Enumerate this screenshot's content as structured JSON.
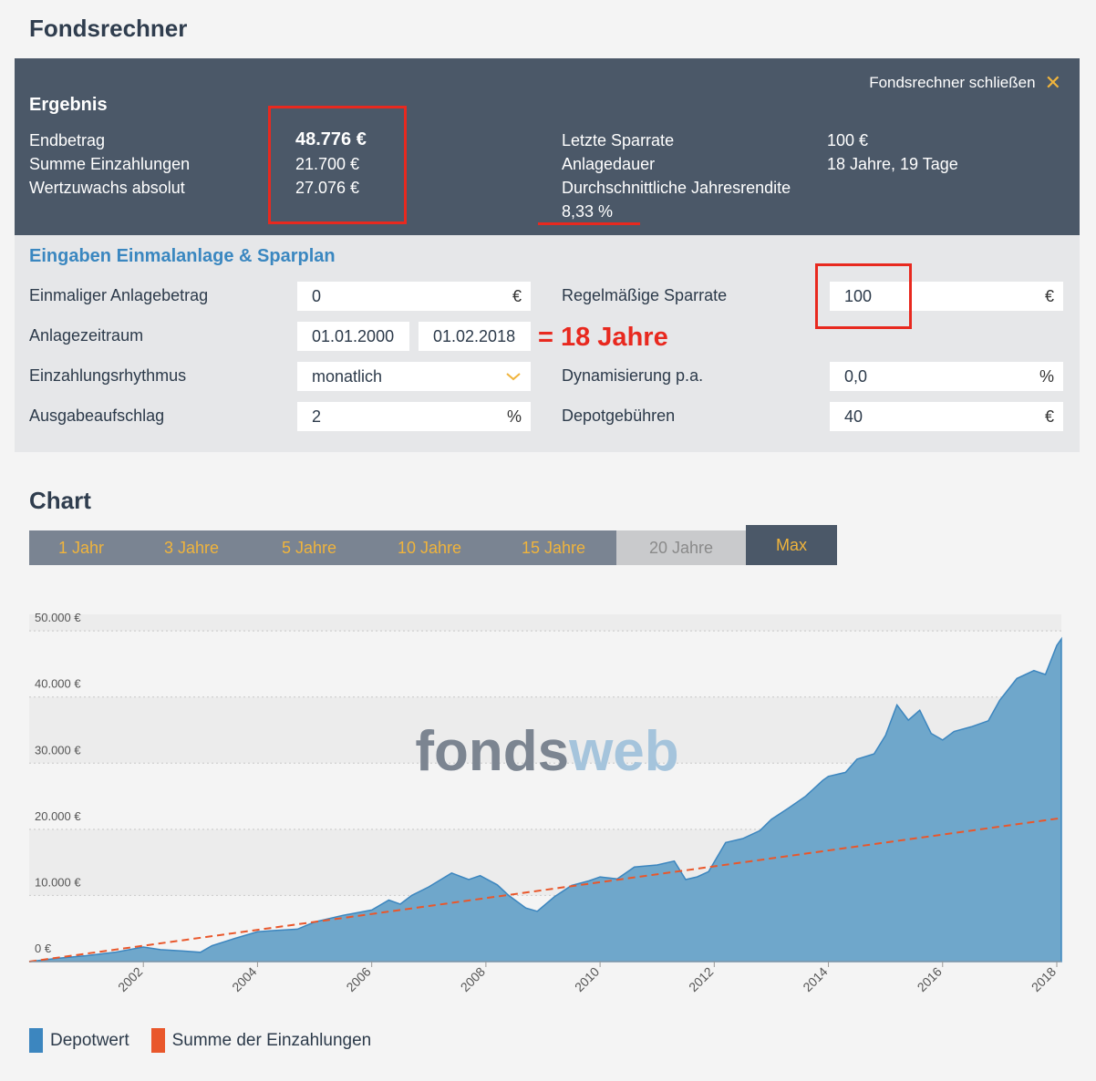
{
  "title": "Fondsrechner",
  "close_label": "Fondsrechner schließen",
  "result": {
    "heading": "Ergebnis",
    "left": [
      {
        "label": "Endbetrag",
        "value": "48.776 €"
      },
      {
        "label": "Summe Einzahlungen",
        "value": "21.700 €"
      },
      {
        "label": "Wertzuwachs absolut",
        "value": "27.076 €"
      }
    ],
    "right": [
      {
        "label": "Letzte Sparrate",
        "value": "100 €"
      },
      {
        "label": "Anlagedauer",
        "value": "18 Jahre, 19 Tage"
      },
      {
        "label": "Durchschnittliche Jahresrendite",
        "value": ""
      }
    ],
    "rendite_value": "8,33 %"
  },
  "inputs": {
    "heading": "Eingaben Einmalanlage & Sparplan",
    "einmal_label": "Einmaliger Anlagebetrag",
    "einmal_value": "0",
    "einmal_unit": "€",
    "zeitraum_label": "Anlagezeitraum",
    "start_date": "01.01.2000",
    "end_date": "01.02.2018",
    "rhythmus_label": "Einzahlungsrhythmus",
    "rhythmus_value": "monatlich",
    "aufschlag_label": "Ausgabeaufschlag",
    "aufschlag_value": "2",
    "aufschlag_unit": "%",
    "sparrate_label": "Regelmäßige Sparrate",
    "sparrate_value": "100",
    "sparrate_unit": "€",
    "dyn_label": "Dynamisierung p.a.",
    "dyn_value": "0,0",
    "dyn_unit": "%",
    "gebuehr_label": "Depotgebühren",
    "gebuehr_value": "40",
    "gebuehr_unit": "€"
  },
  "annotation": "= 18 Jahre",
  "chart_title": "Chart",
  "tabs": [
    {
      "label": "1 Jahr",
      "state": "normal"
    },
    {
      "label": "3 Jahre",
      "state": "normal"
    },
    {
      "label": "5 Jahre",
      "state": "normal"
    },
    {
      "label": "10 Jahre",
      "state": "normal"
    },
    {
      "label": "15 Jahre",
      "state": "normal"
    },
    {
      "label": "20 Jahre",
      "state": "disabled"
    },
    {
      "label": "Max",
      "state": "active"
    }
  ],
  "watermark": {
    "part1": "fonds",
    "part2": "web"
  },
  "colors": {
    "depot": "#6fa7cb",
    "depot_line": "#3c86bf",
    "einzahlung": "#e9572b",
    "accent": "#f0b43c",
    "highlight": "#e8291f"
  },
  "chart_data": {
    "type": "area",
    "y_tick_labels": [
      "0 €",
      "10.000 €",
      "20.000 €",
      "30.000 €",
      "40.000 €",
      "50.000 €"
    ],
    "ylim": [
      0,
      50000
    ],
    "x_tick_labels": [
      "2002",
      "2004",
      "2006",
      "2008",
      "2010",
      "2012",
      "2014",
      "2016",
      "2018"
    ],
    "xlim": [
      2000.0,
      2018.08
    ],
    "series": [
      {
        "name": "Depotwert",
        "type": "area",
        "x": [
          2000.0,
          2000.5,
          2001.0,
          2001.5,
          2002.0,
          2002.3,
          2002.7,
          2003.0,
          2003.2,
          2003.6,
          2004.0,
          2004.3,
          2004.7,
          2005.0,
          2005.5,
          2006.0,
          2006.3,
          2006.5,
          2006.7,
          2007.0,
          2007.4,
          2007.7,
          2007.9,
          2008.2,
          2008.4,
          2008.7,
          2008.9,
          2009.2,
          2009.5,
          2009.8,
          2010.0,
          2010.3,
          2010.6,
          2011.0,
          2011.3,
          2011.5,
          2011.7,
          2011.9,
          2012.2,
          2012.5,
          2012.8,
          2013.0,
          2013.3,
          2013.6,
          2013.9,
          2014.0,
          2014.3,
          2014.5,
          2014.8,
          2015.0,
          2015.2,
          2015.4,
          2015.6,
          2015.8,
          2016.0,
          2016.2,
          2016.5,
          2016.8,
          2017.0,
          2017.3,
          2017.6,
          2017.8,
          2018.0,
          2018.08
        ],
        "y": [
          0,
          500,
          900,
          1400,
          2200,
          1800,
          1600,
          1400,
          2400,
          3500,
          4500,
          4700,
          4900,
          6000,
          7000,
          7800,
          9300,
          8700,
          10000,
          11300,
          13400,
          12400,
          13000,
          11600,
          10000,
          8100,
          7600,
          9800,
          11500,
          12200,
          12800,
          12500,
          14300,
          14600,
          15200,
          12400,
          12800,
          13600,
          18000,
          18600,
          19800,
          21500,
          23200,
          25000,
          27400,
          28000,
          28600,
          30600,
          31400,
          34200,
          38800,
          36500,
          38000,
          34500,
          33500,
          34800,
          35500,
          36400,
          39500,
          42800,
          44000,
          43400,
          47800,
          48776
        ]
      },
      {
        "name": "Summe der Einzahlungen",
        "type": "dashed-line",
        "x": [
          2000.0,
          2018.08
        ],
        "y": [
          0,
          21700
        ]
      }
    ],
    "legend_position": "bottom-left",
    "grid": "alternating horizontal bands"
  },
  "legend": [
    {
      "label": "Depotwert"
    },
    {
      "label": "Summe der Einzahlungen"
    }
  ]
}
